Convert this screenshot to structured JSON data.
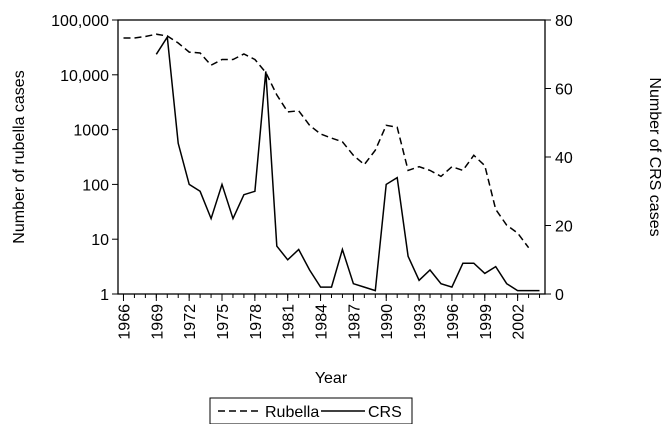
{
  "chart_data": {
    "type": "line",
    "x_label": "Year",
    "y_label": "Number of rubella cases",
    "y2_label": "Number of CRS cases",
    "x": [
      1966,
      1967,
      1968,
      1969,
      1970,
      1971,
      1972,
      1973,
      1974,
      1975,
      1976,
      1977,
      1978,
      1979,
      1980,
      1981,
      1982,
      1983,
      1984,
      1985,
      1986,
      1987,
      1988,
      1989,
      1990,
      1991,
      1992,
      1993,
      1994,
      1995,
      1996,
      1997,
      1998,
      1999,
      2000,
      2001,
      2002,
      2003,
      2004
    ],
    "series": [
      {
        "name": "Rubella",
        "color": "#000000",
        "line_style": "dashed",
        "axis": "y",
        "values": [
          47000,
          47000,
          50000,
          55000,
          51000,
          38000,
          26000,
          25000,
          15000,
          19000,
          19000,
          24000,
          19000,
          11000,
          4300,
          2100,
          2200,
          1200,
          830,
          700,
          600,
          340,
          230,
          420,
          1200,
          1100,
          180,
          210,
          180,
          140,
          210,
          180,
          340,
          220,
          35,
          18,
          13,
          7,
          null
        ]
      },
      {
        "name": "CRS",
        "color": "#000000",
        "line_style": "solid",
        "axis": "y2",
        "values": [
          null,
          null,
          null,
          70,
          75,
          44,
          32,
          30,
          22,
          32,
          22,
          29,
          30,
          65,
          14,
          10,
          13,
          7,
          2,
          2,
          13,
          3,
          2,
          1,
          32,
          34,
          11,
          4,
          7,
          3,
          2,
          9,
          9,
          6,
          8,
          3,
          1,
          1,
          1
        ]
      }
    ],
    "xlim": [
      1965.5,
      2004.5
    ],
    "xticks": [
      1966,
      1969,
      1972,
      1975,
      1978,
      1981,
      1984,
      1987,
      1990,
      1993,
      1996,
      1999,
      2002
    ],
    "ylim": [
      1,
      100000
    ],
    "y_scale": "log",
    "yticks": [
      1,
      10,
      100,
      1000,
      {
        "value": 10000,
        "label": "10,000"
      },
      {
        "value": 100000,
        "label": "100,000"
      }
    ],
    "y2lim": [
      0,
      80
    ],
    "y2ticks": [
      0,
      20,
      40,
      60,
      80
    ],
    "legend": "bottom"
  }
}
